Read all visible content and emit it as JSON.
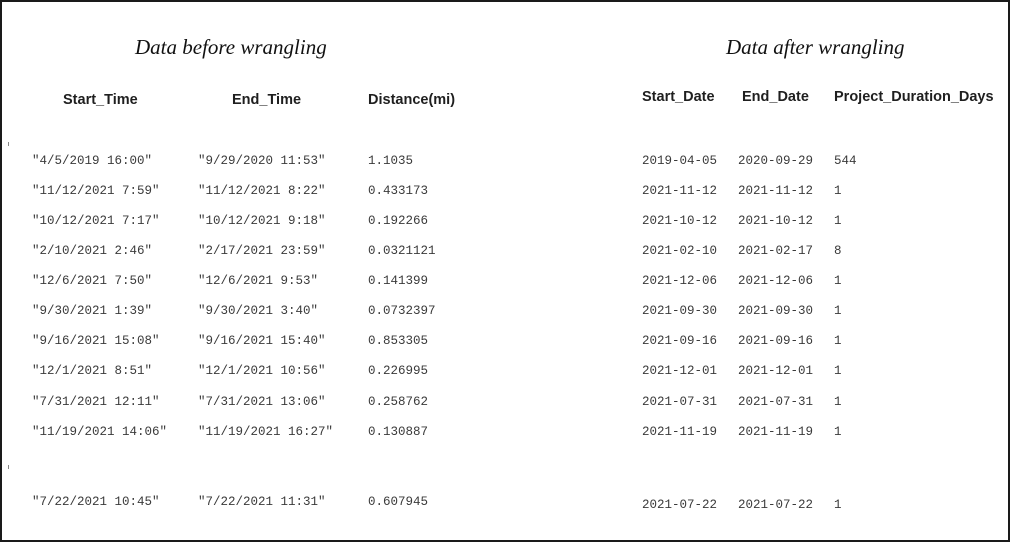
{
  "before": {
    "caption": "Data before wrangling",
    "headers": [
      "Start_Time",
      "End_Time",
      "Distance(mi)"
    ],
    "rows": [
      [
        "\"4/5/2019 16:00\"",
        "\"9/29/2020 11:53\"",
        "1.1035"
      ],
      [
        "\"11/12/2021 7:59\"",
        "\"11/12/2021 8:22\"",
        "0.433173"
      ],
      [
        "\"10/12/2021 7:17\"",
        "\"10/12/2021 9:18\"",
        "0.192266"
      ],
      [
        "\"2/10/2021 2:46\"",
        "\"2/17/2021 23:59\"",
        "0.0321121"
      ],
      [
        "\"12/6/2021 7:50\"",
        "\"12/6/2021 9:53\"",
        "0.141399"
      ],
      [
        "\"9/30/2021 1:39\"",
        "\"9/30/2021 3:40\"",
        "0.0732397"
      ],
      [
        "\"9/16/2021 15:08\"",
        "\"9/16/2021 15:40\"",
        "0.853305"
      ],
      [
        "\"12/1/2021 8:51\"",
        "\"12/1/2021 10:56\"",
        "0.226995"
      ],
      [
        "\"7/31/2021 12:11\"",
        "\"7/31/2021 13:06\"",
        "0.258762"
      ],
      [
        "\"11/19/2021 14:06\"",
        "\"11/19/2021 16:27\"",
        "0.130887"
      ],
      [
        "\"7/22/2021 10:45\"",
        "\"7/22/2021 11:31\"",
        "0.607945"
      ]
    ]
  },
  "after": {
    "caption": "Data after wrangling",
    "headers": [
      "Start_Date",
      "End_Date",
      "Project_Duration_Days"
    ],
    "rows": [
      [
        "2019-04-05",
        "2020-09-29",
        "544"
      ],
      [
        "2021-11-12",
        "2021-11-12",
        "1"
      ],
      [
        "2021-10-12",
        "2021-10-12",
        "1"
      ],
      [
        "2021-02-10",
        "2021-02-17",
        "8"
      ],
      [
        "2021-12-06",
        "2021-12-06",
        "1"
      ],
      [
        "2021-09-30",
        "2021-09-30",
        "1"
      ],
      [
        "2021-09-16",
        "2021-09-16",
        "1"
      ],
      [
        "2021-12-01",
        "2021-12-01",
        "1"
      ],
      [
        "2021-07-31",
        "2021-07-31",
        "1"
      ],
      [
        "2021-11-19",
        "2021-11-19",
        "1"
      ],
      [
        "2021-07-22",
        "2021-07-22",
        "1"
      ]
    ]
  }
}
